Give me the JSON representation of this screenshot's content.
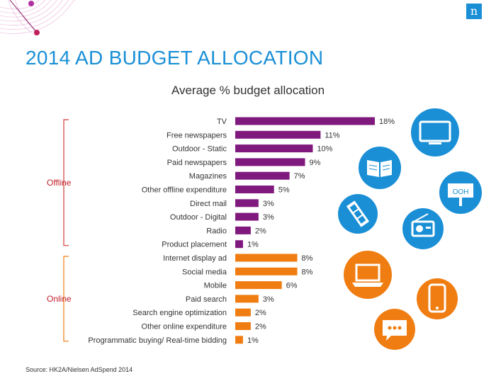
{
  "logo": "n",
  "title": "2014 AD BUDGET ALLOCATION",
  "subtitle": "Average % budget allocation",
  "source": "Source: HK2A/Nielsen AdSpend 2014",
  "colors": {
    "offline": "#80197e",
    "online": "#f07d12",
    "title": "#1a8fd6",
    "bracket_offline": "#d23a3a",
    "bracket_online": "#f07d12",
    "icon_blue": "#1a8fd6",
    "icon_orange": "#f07d12"
  },
  "icons": [
    "tv-icon",
    "book-icon",
    "ooh-billboard-icon",
    "film-icon",
    "radio-icon",
    "laptop-icon",
    "mobile-phone-icon",
    "chat-bubble-icon"
  ],
  "chart_data": {
    "type": "bar",
    "title": "Average % budget allocation",
    "orientation": "horizontal",
    "groups": [
      {
        "name": "Offline",
        "categories": [
          "TV",
          "Free newspapers",
          "Outdoor - Static",
          "Paid newspapers",
          "Magazines",
          "Other offline expenditure",
          "Direct mail",
          "Outdoor - Digital",
          "Radio",
          "Product placement"
        ],
        "values": [
          18,
          11,
          10,
          9,
          7,
          5,
          3,
          3,
          2,
          1
        ]
      },
      {
        "name": "Online",
        "categories": [
          "Internet display ad",
          "Social media",
          "Mobile",
          "Paid search",
          "Search engine optimization",
          "Other online expenditure",
          "Programmatic buying/ Real-time bidding"
        ],
        "values": [
          8,
          8,
          6,
          3,
          2,
          2,
          1
        ]
      }
    ],
    "value_suffix": "%",
    "xlim": [
      0,
      18
    ],
    "grid": false
  }
}
